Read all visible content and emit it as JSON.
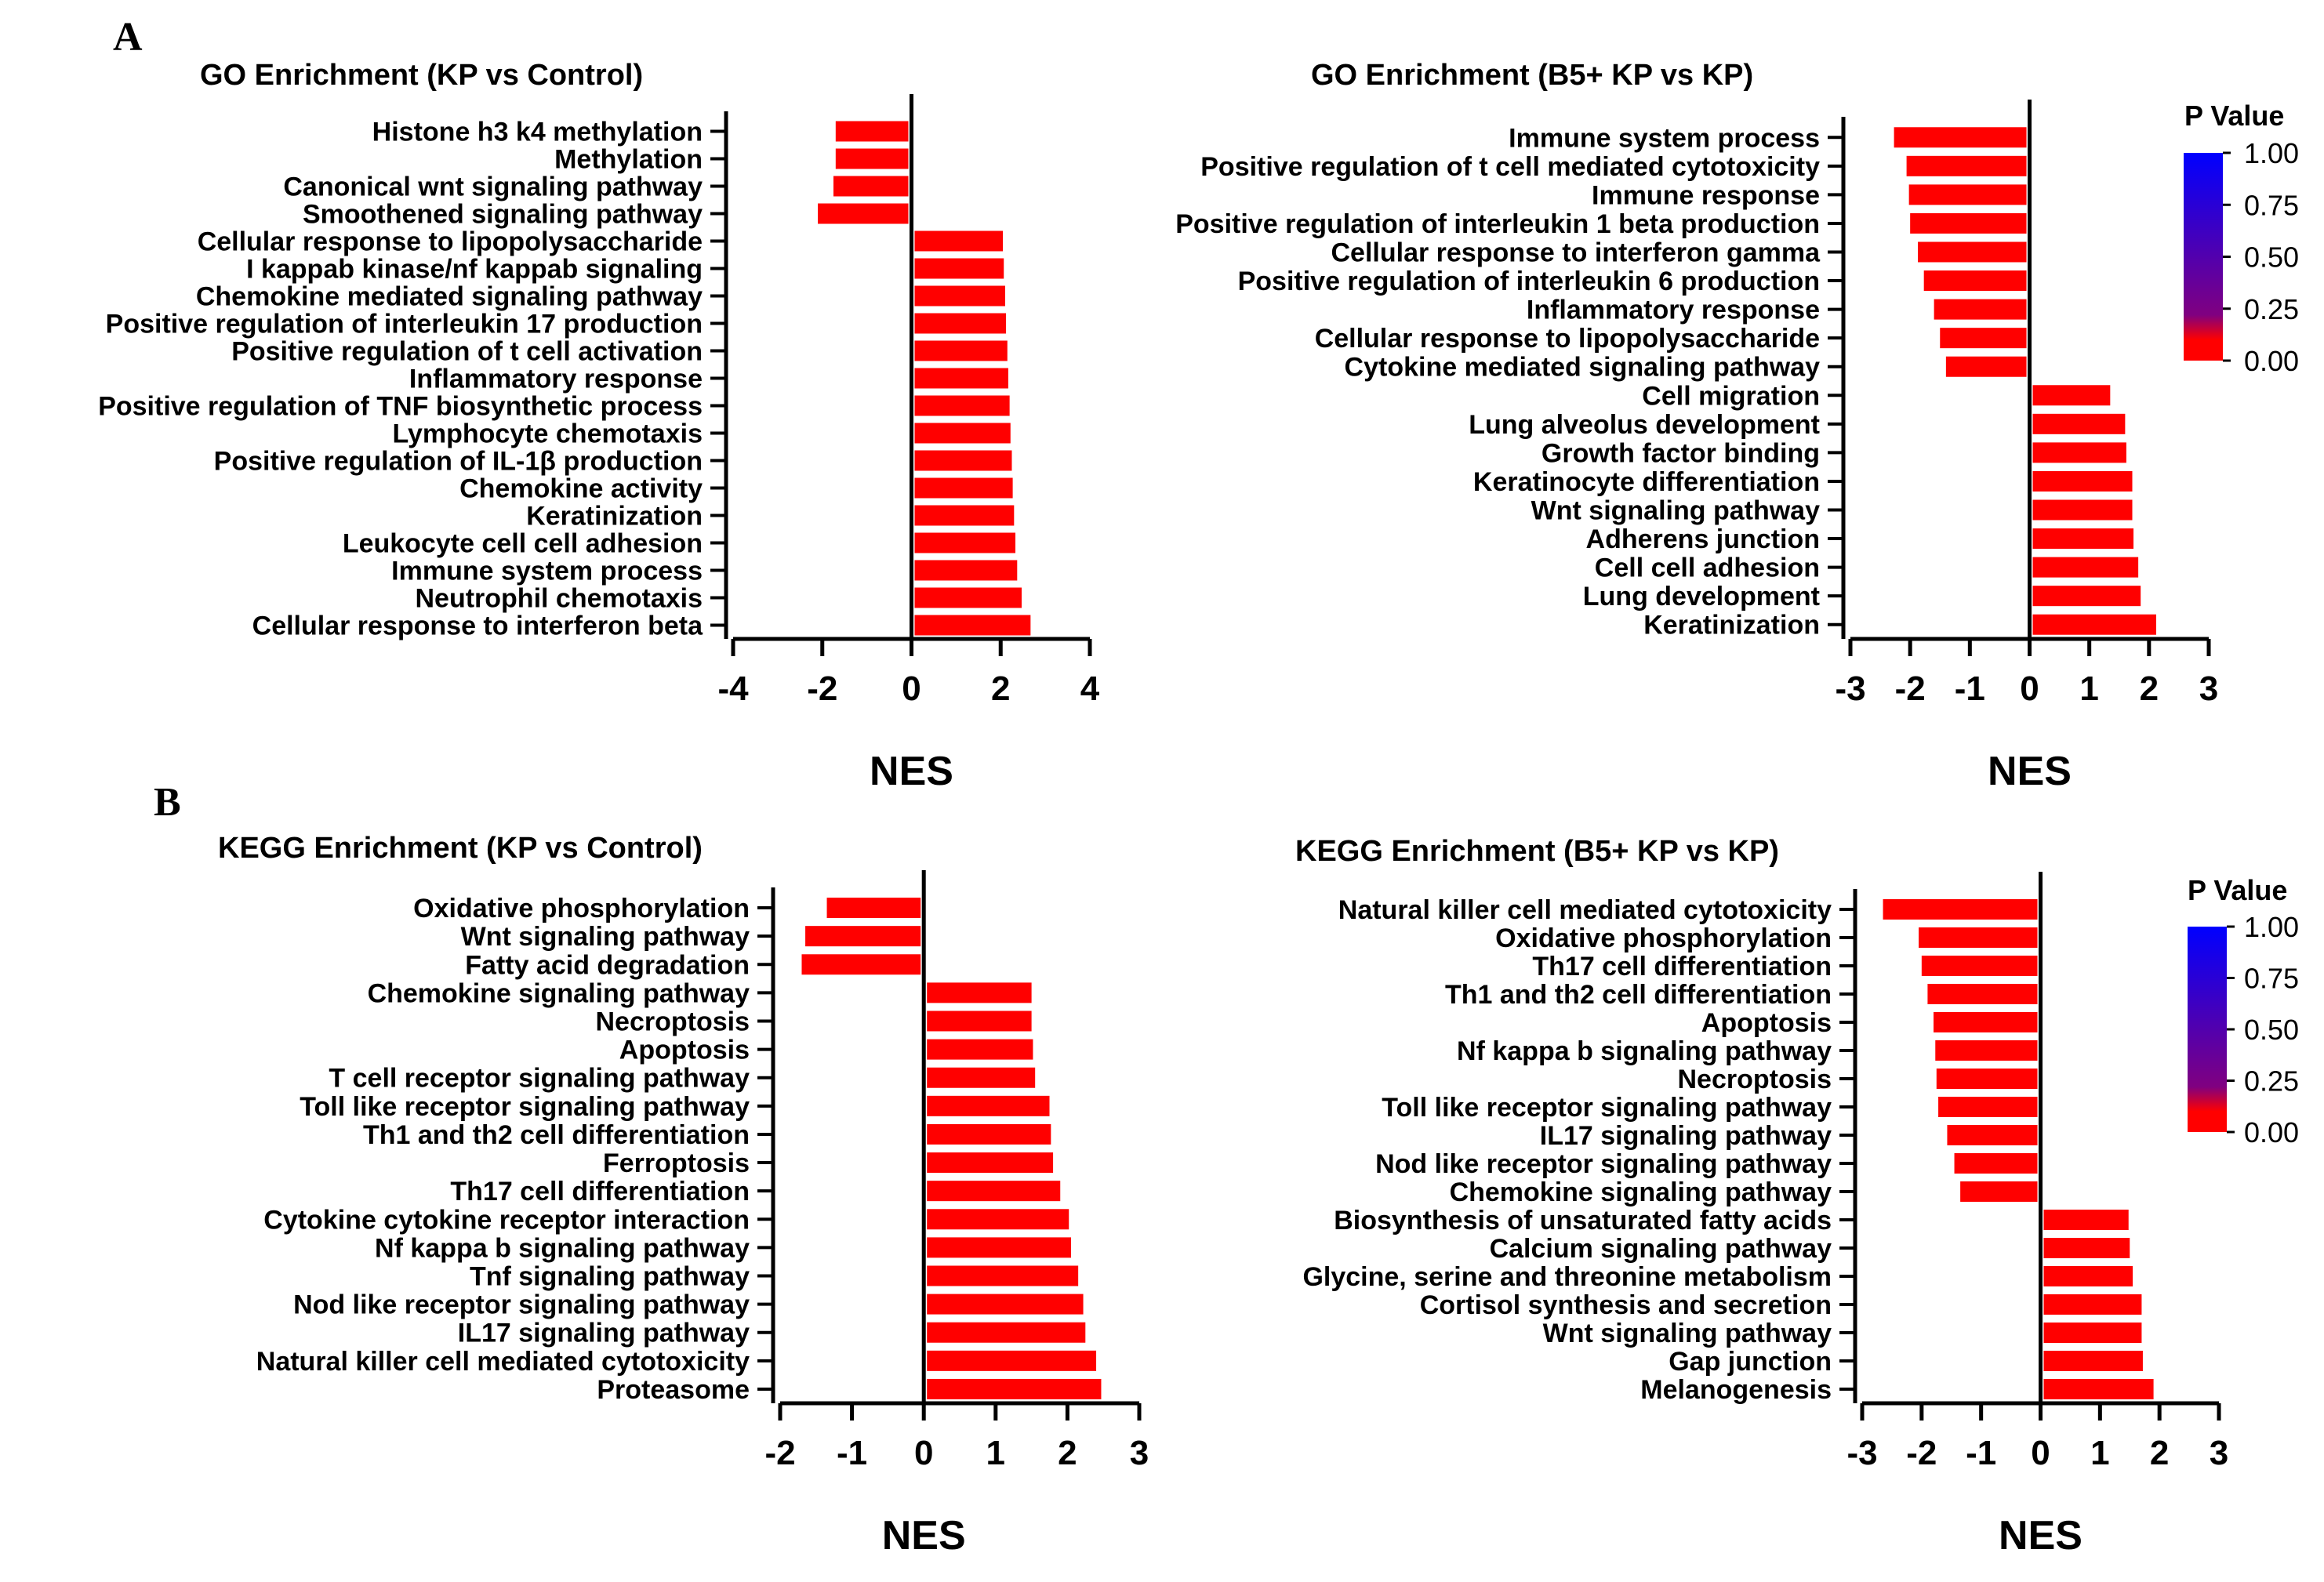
{
  "panels": [
    {
      "letter": "A"
    },
    {
      "letter": "B"
    }
  ],
  "legend": {
    "title": "P Value",
    "ticks": [
      "1.00",
      "0.75",
      "0.50",
      "0.25",
      "0.00"
    ],
    "gradient_colors": [
      "#ff0000",
      "#800080",
      "#0000ff"
    ]
  },
  "chart_data": [
    {
      "type": "bar",
      "orientation": "horizontal",
      "title": "GO Enrichment (KP vs Control)",
      "xlabel": "NES",
      "xlim": [
        -4,
        4
      ],
      "xticks": [
        "-4",
        "-2",
        "0",
        "2",
        "4"
      ],
      "bar_color": "#ff0000",
      "categories": [
        "Histone h3 k4 methylation",
        "Methylation",
        "Canonical wnt signaling pathway",
        "Smoothened signaling pathway",
        "Cellular response to lipopolysaccharide",
        "I kappab kinase/nf kappab signaling",
        "Chemokine mediated signaling pathway",
        "Positive regulation of interleukin 17 production",
        "Positive regulation of t cell activation",
        "Inflammatory response",
        "Positive regulation of TNF biosynthetic process",
        "Lymphocyte chemotaxis",
        "Positive regulation of IL-1β production",
        "Chemokine activity",
        "Keratinization",
        "Leukocyte cell cell adhesion",
        "Immune system process",
        "Neutrophil chemotaxis",
        "Cellular response to interferon beta"
      ],
      "values": [
        -1.7,
        -1.7,
        -1.75,
        -2.1,
        2.05,
        2.07,
        2.1,
        2.12,
        2.15,
        2.17,
        2.2,
        2.22,
        2.25,
        2.27,
        2.3,
        2.33,
        2.37,
        2.47,
        2.67
      ]
    },
    {
      "type": "bar",
      "orientation": "horizontal",
      "title": "GO Enrichment (B5+ KP vs KP)",
      "xlabel": "NES",
      "xlim": [
        -3,
        3
      ],
      "xticks": [
        "-3",
        "-2",
        "-1",
        "0",
        "1",
        "2",
        "3"
      ],
      "bar_color": "#ff0000",
      "categories": [
        "Immune system process",
        "Positive regulation of t cell mediated cytotoxicity",
        "Immune response",
        "Positive regulation of interleukin 1 beta production",
        "Cellular response to interferon gamma",
        "Positive regulation of interleukin 6 production",
        "Inflammatory response",
        "Cellular response to lipopolysaccharide",
        "Cytokine mediated signaling pathway",
        "Cell migration",
        "Lung alveolus development",
        "Growth factor binding",
        "Keratinocyte differentiation",
        "Wnt signaling pathway",
        "Adherens junction",
        "Cell cell adhesion",
        "Lung development",
        "Keratinization"
      ],
      "values": [
        -2.27,
        -2.06,
        -2.02,
        -2.0,
        -1.87,
        -1.77,
        -1.6,
        -1.5,
        -1.4,
        1.35,
        1.6,
        1.62,
        1.72,
        1.72,
        1.74,
        1.82,
        1.86,
        2.12
      ]
    },
    {
      "type": "bar",
      "orientation": "horizontal",
      "title": "KEGG Enrichment (KP vs Control)",
      "xlabel": "NES",
      "xlim": [
        -2,
        3
      ],
      "xticks": [
        "-2",
        "-1",
        "0",
        "1",
        "2",
        "3"
      ],
      "bar_color": "#ff0000",
      "categories": [
        "Oxidative phosphorylation",
        "Wnt signaling pathway",
        "Fatty acid degradation",
        "Chemokine signaling pathway",
        "Necroptosis",
        "Apoptosis",
        "T cell receptor signaling pathway",
        "Toll like receptor signaling pathway",
        "Th1 and th2 cell differentiation",
        "Ferroptosis",
        "Th17 cell differentiation",
        "Cytokine cytokine receptor interaction",
        "Nf kappa b signaling pathway",
        "Tnf signaling pathway",
        "Nod like receptor signaling pathway",
        "IL17 signaling pathway",
        "Natural killer cell mediated cytotoxicity",
        "Proteasome"
      ],
      "values": [
        -1.35,
        -1.65,
        -1.7,
        1.5,
        1.5,
        1.52,
        1.55,
        1.75,
        1.77,
        1.8,
        1.9,
        2.02,
        2.05,
        2.15,
        2.22,
        2.25,
        2.4,
        2.47
      ]
    },
    {
      "type": "bar",
      "orientation": "horizontal",
      "title": "KEGG Enrichment (B5+ KP vs KP)",
      "xlabel": "NES",
      "xlim": [
        -3,
        3
      ],
      "xticks": [
        "-3",
        "-2",
        "-1",
        "0",
        "1",
        "2",
        "3"
      ],
      "bar_color": "#ff0000",
      "categories": [
        "Natural killer cell mediated cytotoxicity",
        "Oxidative phosphorylation",
        "Th17 cell differentiation",
        "Th1 and th2 cell differentiation",
        "Apoptosis",
        "Nf kappa b signaling pathway",
        "Necroptosis",
        "Toll like receptor signaling pathway",
        "IL17 signaling pathway",
        "Nod like receptor signaling pathway",
        "Chemokine signaling pathway",
        "Biosynthesis of unsaturated fatty acids",
        "Calcium signaling pathway",
        "Glycine, serine and threonine metabolism",
        "Cortisol synthesis and secretion",
        "Wnt signaling pathway",
        "Gap junction",
        "Melanogenesis"
      ],
      "values": [
        -2.65,
        -2.05,
        -2.0,
        -1.9,
        -1.8,
        -1.77,
        -1.75,
        -1.72,
        -1.57,
        -1.45,
        -1.35,
        1.48,
        1.5,
        1.55,
        1.7,
        1.7,
        1.72,
        1.9
      ]
    }
  ]
}
